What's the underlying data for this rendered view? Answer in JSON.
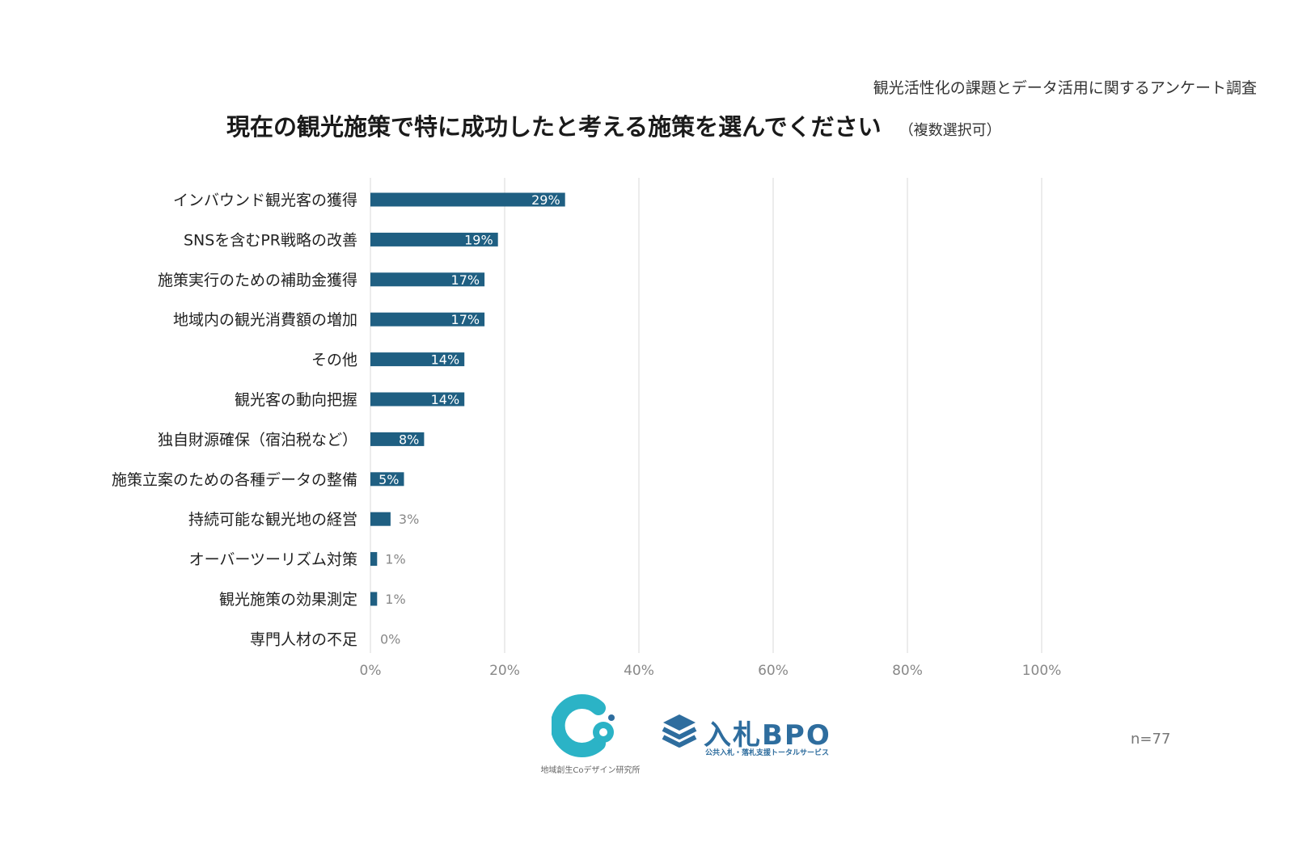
{
  "header": {
    "survey_title": "観光活性化の課題とデータ活用に関するアンケート調査",
    "title": "現在の観光施策で特に成功したと考える施策を選んでください",
    "note": "（複数選択可）"
  },
  "footer": {
    "n_label": "n=77",
    "logo_co_caption": "地域創生Coデザイン研究所",
    "logo_bpo_main": "入札BPO",
    "logo_bpo_sub": "公共入札・落札支援トータルサービス"
  },
  "colors": {
    "bar": "#1f5f82",
    "grid": "#d9d9d9",
    "inner_label": "#ffffff",
    "outer_label": "#888888",
    "logo_teal": "#2bb3c6",
    "logo_blue": "#2e6d9e"
  },
  "chart_data": {
    "type": "bar",
    "orientation": "horizontal",
    "categories": [
      "インバウンド観光客の獲得",
      "SNSを含むPR戦略の改善",
      "施策実行のための補助金獲得",
      "地域内の観光消費額の増加",
      "その他",
      "観光客の動向把握",
      "独自財源確保（宿泊税など）",
      "施策立案のための各種データの整備",
      "持続可能な観光地の経営",
      "オーバーツーリズム対策",
      "観光施策の効果測定",
      "専門人材の不足"
    ],
    "values": [
      29,
      19,
      17,
      17,
      14,
      14,
      8,
      5,
      3,
      1,
      1,
      0
    ],
    "data_labels": [
      "29%",
      "19%",
      "17%",
      "17%",
      "14%",
      "14%",
      "8%",
      "5%",
      "3%",
      "1%",
      "1%",
      "0%"
    ],
    "x_ticks": [
      "0%",
      "20%",
      "40%",
      "60%",
      "80%",
      "100%"
    ],
    "xlim": [
      0,
      100
    ],
    "grid": true
  }
}
